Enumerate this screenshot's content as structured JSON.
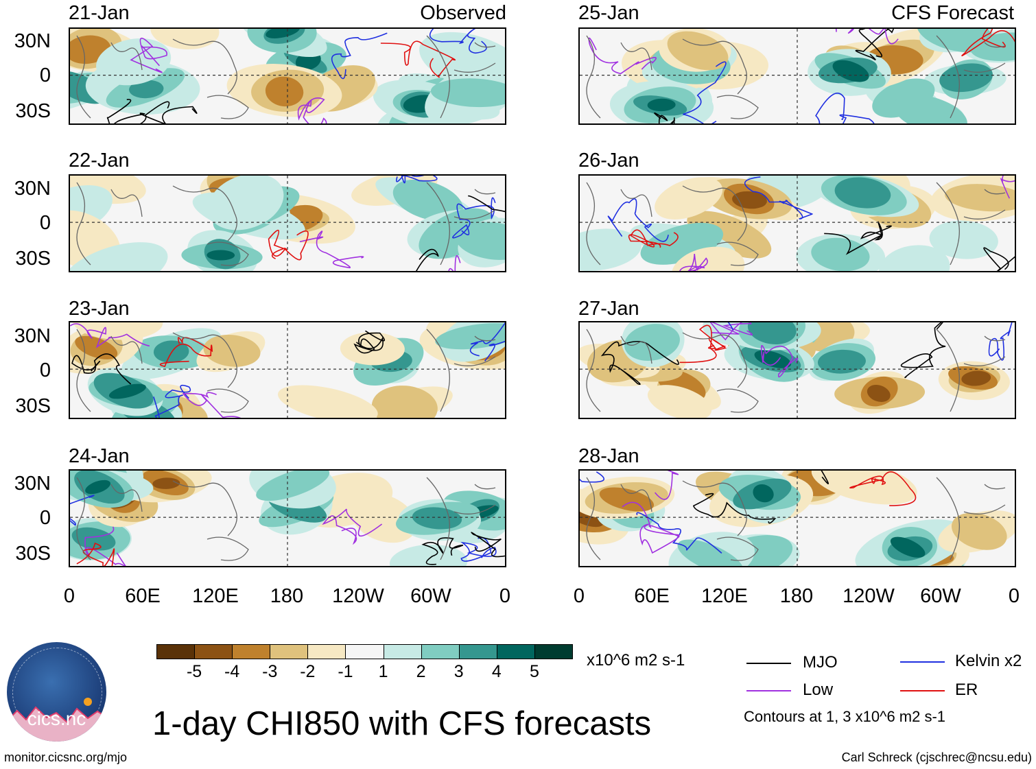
{
  "title": "1-day CHI850 with CFS forecasts",
  "panel_labels": {
    "observed": "Observed",
    "forecast": "CFS Forecast"
  },
  "left_panels": [
    {
      "date": "21-Jan"
    },
    {
      "date": "22-Jan"
    },
    {
      "date": "23-Jan"
    },
    {
      "date": "24-Jan"
    }
  ],
  "right_panels": [
    {
      "date": "25-Jan"
    },
    {
      "date": "26-Jan"
    },
    {
      "date": "27-Jan"
    },
    {
      "date": "28-Jan"
    }
  ],
  "lat_labels": [
    "30N",
    "0",
    "30S"
  ],
  "lon_labels": [
    "0",
    "60E",
    "120E",
    "180",
    "120W",
    "60W",
    "0"
  ],
  "colorbar": {
    "colors": [
      "#5a3208",
      "#8c5214",
      "#bf812d",
      "#dfc27d",
      "#f6e8c3",
      "#f5f5f5",
      "#c7eae5",
      "#80cdc1",
      "#35978f",
      "#01665e",
      "#003c30"
    ],
    "tick_labels": [
      "-5",
      "-4",
      "-3",
      "-2",
      "-1",
      "1",
      "2",
      "3",
      "4",
      "5"
    ],
    "units": "x10^6 m2 s-1"
  },
  "legend": {
    "items": [
      {
        "label": "MJO",
        "color": "#000000"
      },
      {
        "label": "Kelvin x2",
        "color": "#1f2fe0"
      },
      {
        "label": "Low",
        "color": "#a030e0"
      },
      {
        "label": "ER",
        "color": "#e01010"
      }
    ],
    "note": "Contours at 1, 3 x10^6 m2 s-1"
  },
  "logo_text": "cics.nc",
  "footer": {
    "left": "monitor.cicsnc.org/mjo",
    "right": "Carl Schreck (cjschrec@ncsu.edu)"
  }
}
